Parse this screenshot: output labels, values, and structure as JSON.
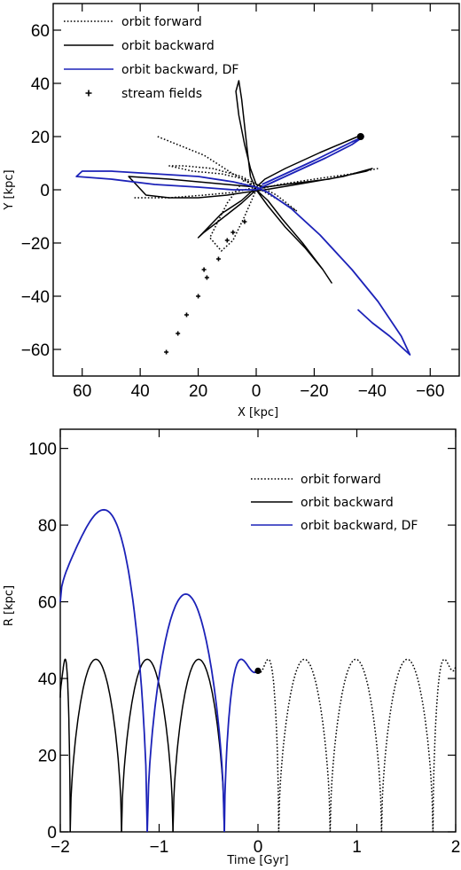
{
  "chart_data": [
    {
      "type": "line",
      "xlabel": "X [kpc]",
      "ylabel": "Y [kpc]",
      "xlim": [
        70,
        -70
      ],
      "ylim": [
        -70,
        70
      ],
      "xticks": [
        60,
        40,
        20,
        0,
        -20,
        -40,
        -60
      ],
      "yticks": [
        60,
        40,
        20,
        0,
        -20,
        -40,
        -60
      ],
      "legend_position": "top-left",
      "legend": [
        {
          "label": "orbit forward",
          "style": "dotted",
          "color": "#000000"
        },
        {
          "label": "orbit backward",
          "style": "solid",
          "color": "#000000"
        },
        {
          "label": "orbit backward, DF",
          "style": "solid",
          "color": "#1c22b8"
        },
        {
          "label": "stream fields",
          "style": "marker-cross",
          "color": "#000000"
        }
      ],
      "series": [
        {
          "name": "orbit forward",
          "style": "dotted",
          "color": "#000000",
          "points": [
            [
              34,
              20
            ],
            [
              18,
              13
            ],
            [
              8,
              6
            ],
            [
              0,
              1
            ],
            [
              -8,
              -4
            ],
            [
              -14,
              -8
            ],
            [
              -7,
              -2
            ],
            [
              5,
              5
            ],
            [
              15,
              8
            ],
            [
              25,
              9
            ],
            [
              30,
              9
            ],
            [
              22,
              7
            ],
            [
              12,
              6
            ],
            [
              4,
              4
            ],
            [
              0,
              0
            ],
            [
              -8,
              2
            ],
            [
              -20,
              4
            ],
            [
              -33,
              6
            ],
            [
              -42,
              8
            ]
          ]
        },
        {
          "name": "orbit forward",
          "style": "dotted",
          "color": "#000000",
          "points": [
            [
              42,
              -3
            ],
            [
              30,
              -3
            ],
            [
              18,
              -2
            ],
            [
              8,
              -1
            ],
            [
              0,
              1
            ],
            [
              4,
              4
            ],
            [
              10,
              -5
            ],
            [
              16,
              -18
            ],
            [
              12,
              -23
            ],
            [
              8,
              -19
            ],
            [
              4,
              -10
            ],
            [
              0,
              0
            ]
          ]
        },
        {
          "name": "orbit backward",
          "style": "solid",
          "color": "#000000",
          "points": [
            [
              -35,
              20
            ],
            [
              -22,
              14
            ],
            [
              -10,
              8
            ],
            [
              -3,
              4
            ],
            [
              0,
              1
            ],
            [
              5,
              -4
            ],
            [
              12,
              -9
            ],
            [
              20,
              -18
            ],
            [
              18,
              -16
            ],
            [
              12,
              -11
            ],
            [
              5,
              -5
            ],
            [
              0,
              0
            ],
            [
              -4,
              -6
            ],
            [
              -10,
              -14
            ],
            [
              -17,
              -22
            ],
            [
              -23,
              -30
            ],
            [
              -26,
              -35
            ],
            [
              -23,
              -30
            ],
            [
              -16,
              -20
            ],
            [
              -9,
              -11
            ],
            [
              -4,
              -4
            ],
            [
              0,
              0
            ],
            [
              2,
              5
            ],
            [
              3,
              14
            ],
            [
              4,
              24
            ],
            [
              5,
              34
            ],
            [
              6,
              41
            ],
            [
              7,
              37
            ],
            [
              6,
              28
            ],
            [
              4,
              17
            ],
            [
              2,
              8
            ],
            [
              0,
              2
            ],
            [
              -3,
              1
            ],
            [
              -10,
              2
            ],
            [
              -25,
              4
            ],
            [
              -38,
              7
            ],
            [
              -40,
              8
            ],
            [
              -30,
              5
            ],
            [
              -14,
              2
            ],
            [
              -3,
              0
            ],
            [
              4,
              -1
            ],
            [
              10,
              -2
            ],
            [
              20,
              -3
            ],
            [
              30,
              -3
            ],
            [
              38,
              -2
            ],
            [
              44,
              5
            ],
            [
              30,
              4
            ],
            [
              10,
              2
            ],
            [
              0,
              1
            ]
          ]
        },
        {
          "name": "orbit backward, DF",
          "style": "solid",
          "color": "#1c22b8",
          "points": [
            [
              -35,
              -45
            ],
            [
              -40,
              -50
            ],
            [
              -46,
              -55
            ],
            [
              -51,
              -60
            ],
            [
              -53,
              -62
            ],
            [
              -50,
              -55
            ],
            [
              -42,
              -42
            ],
            [
              -33,
              -30
            ],
            [
              -22,
              -17
            ],
            [
              -12,
              -7
            ],
            [
              -4,
              -1
            ],
            [
              0,
              1
            ],
            [
              8,
              3
            ],
            [
              20,
              5
            ],
            [
              35,
              6
            ],
            [
              50,
              7
            ],
            [
              60,
              7
            ],
            [
              62,
              5
            ],
            [
              50,
              4
            ],
            [
              35,
              2
            ],
            [
              20,
              1
            ],
            [
              8,
              0
            ],
            [
              0,
              0
            ],
            [
              -6,
              3
            ],
            [
              -14,
              7
            ],
            [
              -24,
              12
            ],
            [
              -33,
              17
            ],
            [
              -37,
              20
            ],
            [
              -33,
              18
            ],
            [
              -20,
              11
            ],
            [
              -8,
              5
            ],
            [
              -2,
              2
            ]
          ]
        }
      ],
      "markers": {
        "current_position": [
          -36,
          20
        ],
        "stream_fields": [
          [
            31,
            -61
          ],
          [
            27,
            -54
          ],
          [
            24,
            -47
          ],
          [
            20,
            -40
          ],
          [
            17,
            -33
          ],
          [
            18,
            -30
          ],
          [
            13,
            -26
          ],
          [
            10,
            -19
          ],
          [
            8,
            -16
          ],
          [
            4,
            -12
          ]
        ]
      }
    },
    {
      "type": "line",
      "xlabel": "Time [Gyr]",
      "ylabel": "R [kpc]",
      "xlim": [
        -2,
        2
      ],
      "ylim": [
        0,
        105
      ],
      "xticks": [
        -2,
        -1,
        0,
        1,
        2
      ],
      "yticks": [
        0,
        20,
        40,
        60,
        80,
        100
      ],
      "legend_position": "top-right",
      "legend": [
        {
          "label": "orbit forward",
          "style": "dotted",
          "color": "#000000"
        },
        {
          "label": "orbit backward",
          "style": "solid",
          "color": "#000000"
        },
        {
          "label": "orbit backward, DF",
          "style": "solid",
          "color": "#1c22b8"
        }
      ],
      "series": [
        {
          "name": "orbit forward",
          "style": "dotted",
          "color": "#000000",
          "arches": [
            [
              0,
              0.21,
              45,
              42,
              0
            ],
            [
              0.21,
              0.73,
              45,
              0,
              0
            ],
            [
              0.73,
              1.25,
              45,
              0,
              0
            ],
            [
              1.25,
              1.77,
              45,
              0,
              0
            ],
            [
              1.77,
              2.0,
              45,
              0,
              43
            ]
          ]
        },
        {
          "name": "orbit backward",
          "style": "solid",
          "color": "#000000",
          "arches": [
            [
              -2.0,
              -1.9,
              45,
              35,
              0
            ],
            [
              -1.9,
              -1.38,
              45,
              0,
              0
            ],
            [
              -1.38,
              -0.86,
              45,
              0,
              0
            ],
            [
              -0.86,
              -0.34,
              45,
              0,
              0
            ]
          ]
        },
        {
          "name": "orbit backward, DF",
          "style": "solid",
          "color": "#1c22b8",
          "arches": [
            [
              -2.0,
              -1.12,
              84,
              60,
              0
            ],
            [
              -1.12,
              -0.34,
              62,
              0,
              0
            ],
            [
              -0.34,
              0,
              45,
              0,
              42
            ]
          ]
        }
      ],
      "markers": {
        "current_position": [
          0,
          42
        ]
      }
    }
  ]
}
